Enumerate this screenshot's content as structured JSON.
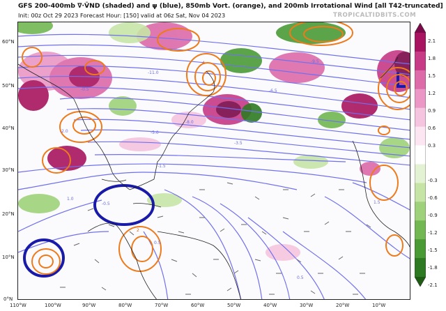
{
  "header": {
    "title": "GFS 200-400mb ∇·V̄ND (shaded) and ψ (blue), 850mb Vort. (orange), and 200mb Irrotational Wind [all T42-truncated]",
    "subtitle": "Init: 00z Oct 29 2023   Forecast Hour: [150]   valid at 06z Sat, Nov 04 2023",
    "brand": "TROPICALTIDBITS.COM"
  },
  "axes": {
    "lat_labels": [
      "60°N",
      "50°N",
      "40°N",
      "30°N",
      "20°N",
      "10°N",
      "0°N"
    ],
    "lon_labels": [
      "110°W",
      "100°W",
      "90°W",
      "80°W",
      "70°W",
      "60°W",
      "50°W",
      "40°W",
      "30°W",
      "20°W",
      "10°W"
    ]
  },
  "colorbar": {
    "ticks": [
      "2.1",
      "1.8",
      "1.5",
      "1.2",
      "0.9",
      "0.6",
      "0.3",
      "-0.3",
      "-0.6",
      "-0.9",
      "-1.2",
      "-1.5",
      "-1.8",
      "-2.1"
    ],
    "colors": [
      "#7a0a4a",
      "#a8145f",
      "#c73a86",
      "#dd6aa9",
      "#eb98c6",
      "#f5c4de",
      "#fbe6f1",
      "#ffffff",
      "#e4f2d4",
      "#c6e4a6",
      "#9fd17a",
      "#72b752",
      "#4a9a35",
      "#2d7a22",
      "#1e5c14"
    ]
  },
  "contour_labels": {
    "psi": [
      "-11.0",
      "-9.5",
      "-8.0",
      "-6.5",
      "-5.0",
      "-3.5",
      "-2.0",
      "-1.5",
      "-0.5",
      "0.5",
      "0.5",
      "1.5",
      "1.0",
      "-0.5"
    ],
    "vort": [
      "4",
      "3",
      "2"
    ]
  },
  "colors": {
    "streamfunction": "#7070ee",
    "streamfunction_strong": "#1a1aa8",
    "vorticity": "#ee7a1a",
    "coast": "#222222",
    "arrow": "#666666"
  }
}
